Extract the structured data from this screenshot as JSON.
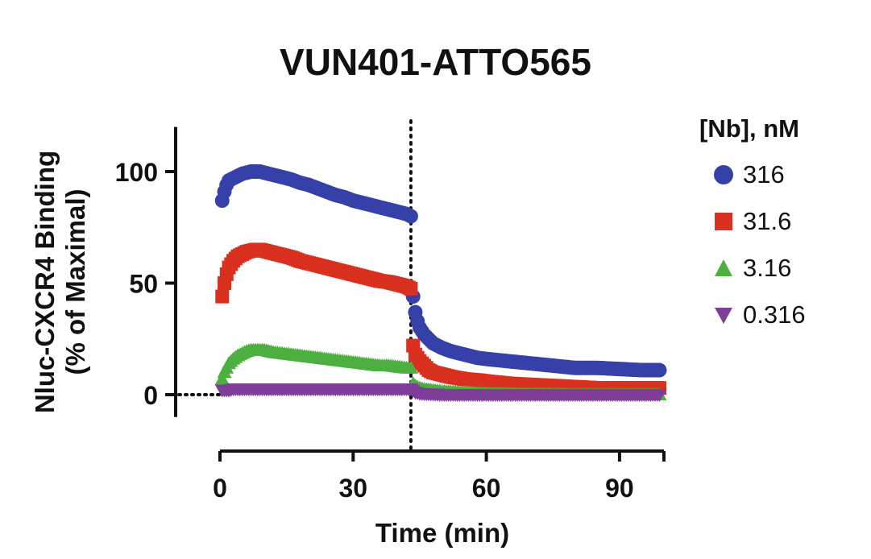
{
  "chart_data": {
    "type": "scatter",
    "title": "VUN401-ATTO565",
    "xlabel": "Time (min)",
    "ylabel_lines": [
      "Nluc-CXCR4 Binding",
      "(% of Maximal)"
    ],
    "xlim": [
      0,
      100
    ],
    "ylim": [
      -10,
      120
    ],
    "xticks": [
      0,
      30,
      60,
      90
    ],
    "yticks": [
      0,
      50,
      100
    ],
    "vline_x": 43,
    "legend_title": "[Nb], nM",
    "legend_position": "right",
    "series": [
      {
        "name": "316",
        "marker": "circle",
        "color": "#3540a8",
        "points": [
          [
            0.5,
            87
          ],
          [
            1,
            91
          ],
          [
            1.5,
            94
          ],
          [
            2,
            96
          ],
          [
            3,
            97
          ],
          [
            4,
            98
          ],
          [
            5,
            99
          ],
          [
            6,
            99.5
          ],
          [
            7,
            100
          ],
          [
            8,
            100
          ],
          [
            9,
            100
          ],
          [
            10,
            99.5
          ],
          [
            11,
            99
          ],
          [
            12,
            98.5
          ],
          [
            14,
            97.5
          ],
          [
            16,
            96.5
          ],
          [
            18,
            95
          ],
          [
            20,
            94
          ],
          [
            22,
            92.5
          ],
          [
            24,
            91
          ],
          [
            26,
            89.5
          ],
          [
            28,
            88.5
          ],
          [
            30,
            87
          ],
          [
            32,
            86
          ],
          [
            34,
            85
          ],
          [
            36,
            84
          ],
          [
            38,
            83
          ],
          [
            40,
            82
          ],
          [
            42,
            81
          ],
          [
            43,
            80
          ],
          [
            43.5,
            44
          ],
          [
            44,
            37
          ],
          [
            44.5,
            33
          ],
          [
            45,
            30
          ],
          [
            46,
            27
          ],
          [
            47,
            25
          ],
          [
            48,
            23
          ],
          [
            50,
            21
          ],
          [
            52,
            19.5
          ],
          [
            55,
            18
          ],
          [
            58,
            16.5
          ],
          [
            60,
            16
          ],
          [
            65,
            15
          ],
          [
            70,
            14
          ],
          [
            75,
            13
          ],
          [
            80,
            12
          ],
          [
            85,
            12
          ],
          [
            90,
            11.5
          ],
          [
            95,
            11
          ],
          [
            99,
            11
          ]
        ]
      },
      {
        "name": "31.6",
        "marker": "square",
        "color": "#d9301f",
        "points": [
          [
            0.5,
            44
          ],
          [
            1,
            50
          ],
          [
            1.5,
            54
          ],
          [
            2,
            57
          ],
          [
            3,
            60
          ],
          [
            4,
            62
          ],
          [
            5,
            63
          ],
          [
            6,
            64
          ],
          [
            7,
            64.5
          ],
          [
            8,
            65
          ],
          [
            9,
            65
          ],
          [
            10,
            64.5
          ],
          [
            11,
            64
          ],
          [
            12,
            63.5
          ],
          [
            14,
            62.5
          ],
          [
            16,
            61.5
          ],
          [
            18,
            60
          ],
          [
            20,
            59
          ],
          [
            22,
            58
          ],
          [
            24,
            57
          ],
          [
            26,
            56
          ],
          [
            28,
            55
          ],
          [
            30,
            54
          ],
          [
            32,
            53
          ],
          [
            34,
            52
          ],
          [
            36,
            51
          ],
          [
            38,
            50.5
          ],
          [
            40,
            49.5
          ],
          [
            42,
            48.5
          ],
          [
            43,
            47.5
          ],
          [
            43.5,
            22
          ],
          [
            44,
            18
          ],
          [
            45,
            15
          ],
          [
            46,
            13
          ],
          [
            47,
            11
          ],
          [
            48,
            10
          ],
          [
            50,
            9
          ],
          [
            52,
            8
          ],
          [
            55,
            7
          ],
          [
            58,
            6.5
          ],
          [
            60,
            6
          ],
          [
            65,
            5
          ],
          [
            70,
            4.5
          ],
          [
            75,
            4
          ],
          [
            80,
            3.5
          ],
          [
            85,
            3
          ],
          [
            90,
            3
          ],
          [
            95,
            3
          ],
          [
            99,
            3
          ]
        ]
      },
      {
        "name": "3.16",
        "marker": "triangle-up",
        "color": "#4caf3f",
        "points": [
          [
            0.5,
            7
          ],
          [
            1,
            10
          ],
          [
            1.5,
            12
          ],
          [
            2,
            14
          ],
          [
            3,
            16
          ],
          [
            4,
            17.5
          ],
          [
            5,
            18.5
          ],
          [
            6,
            19.5
          ],
          [
            7,
            20
          ],
          [
            8,
            20
          ],
          [
            9,
            20
          ],
          [
            10,
            20
          ],
          [
            11,
            19.5
          ],
          [
            12,
            19
          ],
          [
            14,
            18.5
          ],
          [
            16,
            18
          ],
          [
            18,
            17.5
          ],
          [
            20,
            17
          ],
          [
            22,
            16.5
          ],
          [
            24,
            16
          ],
          [
            26,
            15.5
          ],
          [
            28,
            15
          ],
          [
            30,
            14.5
          ],
          [
            32,
            14
          ],
          [
            34,
            13.5
          ],
          [
            36,
            13
          ],
          [
            38,
            13
          ],
          [
            40,
            12.5
          ],
          [
            42,
            12
          ],
          [
            43,
            12
          ],
          [
            43.5,
            5
          ],
          [
            44,
            4
          ],
          [
            45,
            3
          ],
          [
            46,
            2.5
          ],
          [
            48,
            2
          ],
          [
            50,
            1.5
          ],
          [
            55,
            1
          ],
          [
            60,
            0.5
          ],
          [
            65,
            0.3
          ],
          [
            70,
            0.2
          ],
          [
            75,
            0.1
          ],
          [
            80,
            0
          ],
          [
            85,
            0
          ],
          [
            90,
            0
          ],
          [
            95,
            0
          ],
          [
            99,
            0
          ]
        ]
      },
      {
        "name": "0.316",
        "marker": "triangle-down",
        "color": "#7d3d98",
        "points": [
          [
            0.5,
            2
          ],
          [
            1,
            2
          ],
          [
            2,
            2
          ],
          [
            3,
            2.5
          ],
          [
            4,
            2.5
          ],
          [
            5,
            2.5
          ],
          [
            6,
            2.5
          ],
          [
            7,
            2.5
          ],
          [
            8,
            2.5
          ],
          [
            10,
            2.5
          ],
          [
            12,
            2.5
          ],
          [
            14,
            2.5
          ],
          [
            16,
            2.5
          ],
          [
            18,
            2.5
          ],
          [
            20,
            2.5
          ],
          [
            22,
            2.5
          ],
          [
            24,
            2.5
          ],
          [
            26,
            2.5
          ],
          [
            28,
            2.5
          ],
          [
            30,
            2.5
          ],
          [
            32,
            2.5
          ],
          [
            34,
            2.5
          ],
          [
            36,
            2.5
          ],
          [
            38,
            2.5
          ],
          [
            40,
            2.5
          ],
          [
            42,
            2.5
          ],
          [
            43,
            2.5
          ],
          [
            44,
            1
          ],
          [
            45,
            0.5
          ],
          [
            46,
            0.3
          ],
          [
            48,
            0.2
          ],
          [
            50,
            0
          ],
          [
            55,
            0
          ],
          [
            60,
            0
          ],
          [
            65,
            0
          ],
          [
            70,
            0
          ],
          [
            75,
            0
          ],
          [
            80,
            0
          ],
          [
            85,
            0
          ],
          [
            90,
            0
          ],
          [
            95,
            0
          ],
          [
            99,
            0
          ]
        ]
      }
    ]
  }
}
